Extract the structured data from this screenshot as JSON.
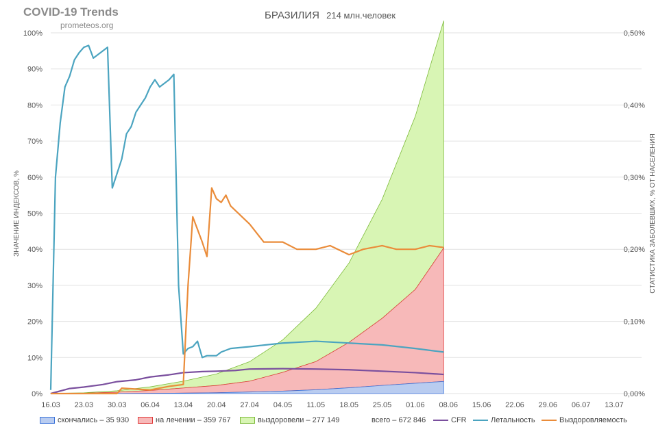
{
  "header": {
    "brand": "COVID-19 Trends",
    "site": "prometeos.org",
    "country": "БРАЗИЛИЯ",
    "population_value": "214",
    "population_unit": "млн.человек"
  },
  "legend": {
    "deaths": "скончались – 35 930",
    "active": "на лечении – 359 767",
    "recovered": "выздоровели – 277 149",
    "total": "всего – 672 846",
    "cfr": "CFR",
    "lethality": "Летальность",
    "recoverability": "Выздоровляемость"
  },
  "colors": {
    "deaths_fill": "#b9ccf0",
    "deaths_stroke": "#3b73d9",
    "active_fill": "#f7b9b9",
    "active_stroke": "#e03a3a",
    "recovered_fill": "#d8f5b4",
    "recovered_stroke": "#7dbb3a",
    "cfr": "#7a4f9e",
    "lethality": "#4ba4c0",
    "recoverability": "#ea8c3a",
    "grid": "#e2e2e2"
  },
  "chart_data": {
    "type": "area",
    "x_labels": [
      "16.03",
      "23.03",
      "30.03",
      "06.04",
      "13.04",
      "20.04",
      "27.04",
      "04.05",
      "11.05",
      "18.05",
      "25.05",
      "01.06",
      "08.06",
      "15.06",
      "22.06",
      "29.06",
      "06.07",
      "13.07"
    ],
    "ylabel_left": "ЗНАЧЕНИЕ ИНДЕКСОВ, %",
    "ylabel_right": "СТАТИСТИКА ЗАБОЛЕВШИХ, % ОТ НАСЕЛЕНИЯ",
    "y_left_ticks": [
      "0%",
      "10%",
      "20%",
      "30%",
      "40%",
      "50%",
      "60%",
      "70%",
      "80%",
      "90%",
      "100%"
    ],
    "y_right_ticks": [
      "0,00%",
      "0,10%",
      "0,20%",
      "0,30%",
      "0,40%",
      "0,50%"
    ],
    "ylim_left": [
      0,
      100
    ],
    "ylim_right": [
      0,
      0.5
    ],
    "x_start": "16.03",
    "x_end": "13.07",
    "series": [
      {
        "name": "скончались – 35 930",
        "axis": "right",
        "kind": "area",
        "x": [
          "16.03",
          "23.03",
          "30.03",
          "06.04",
          "13.04",
          "20.04",
          "27.04",
          "04.05",
          "11.05",
          "18.05",
          "25.05",
          "01.06",
          "07.06"
        ],
        "values": [
          0.0,
          0.0,
          0.0001,
          0.0003,
          0.0007,
          0.0012,
          0.0022,
          0.0034,
          0.0053,
          0.008,
          0.0113,
          0.0143,
          0.0168
        ]
      },
      {
        "name": "на лечении – 359 767",
        "axis": "right",
        "kind": "area",
        "x": [
          "16.03",
          "23.03",
          "30.03",
          "06.04",
          "13.04",
          "20.04",
          "27.04",
          "04.05",
          "11.05",
          "18.05",
          "25.05",
          "01.06",
          "07.06"
        ],
        "values": [
          0.0001,
          0.0005,
          0.0018,
          0.004,
          0.007,
          0.01,
          0.015,
          0.026,
          0.039,
          0.063,
          0.093,
          0.13,
          0.185
        ]
      },
      {
        "name": "выздоровели – 277 149",
        "axis": "right",
        "kind": "area",
        "x": [
          "16.03",
          "23.03",
          "30.03",
          "06.04",
          "13.04",
          "20.04",
          "27.04",
          "04.05",
          "11.05",
          "18.05",
          "25.05",
          "01.06",
          "07.06"
        ],
        "values": [
          0.0001,
          0.0006,
          0.002,
          0.005,
          0.0095,
          0.016,
          0.027,
          0.045,
          0.074,
          0.11,
          0.165,
          0.24,
          0.315
        ]
      },
      {
        "name": "CFR",
        "axis": "left",
        "kind": "line",
        "x": [
          "16.03",
          "20.03",
          "23.03",
          "27.03",
          "30.03",
          "03.04",
          "06.04",
          "10.04",
          "13.04",
          "17.04",
          "20.04",
          "24.04",
          "27.04",
          "04.05",
          "11.05",
          "18.05",
          "25.05",
          "01.06",
          "07.06"
        ],
        "values": [
          0.0,
          1.4,
          1.8,
          2.5,
          3.3,
          3.8,
          4.6,
          5.2,
          5.8,
          6.1,
          6.2,
          6.4,
          6.8,
          6.9,
          6.8,
          6.6,
          6.2,
          5.8,
          5.3
        ]
      },
      {
        "name": "Летальность",
        "axis": "left",
        "kind": "line",
        "x": [
          "16.03",
          "17.03",
          "18.03",
          "19.03",
          "20.03",
          "21.03",
          "22.03",
          "23.03",
          "24.03",
          "25.03",
          "26.03",
          "27.03",
          "28.03",
          "29.03",
          "30.03",
          "31.03",
          "01.04",
          "02.04",
          "03.04",
          "04.04",
          "05.04",
          "06.04",
          "07.04",
          "08.04",
          "09.04",
          "10.04",
          "11.04",
          "12.04",
          "13.04",
          "14.04",
          "15.04",
          "16.04",
          "17.04",
          "18.04",
          "19.04",
          "20.04",
          "21.04",
          "22.04",
          "23.04",
          "27.04",
          "04.05",
          "11.05",
          "18.05",
          "25.05",
          "01.06",
          "07.06"
        ],
        "values": [
          1.0,
          60.0,
          75.0,
          85.0,
          88.0,
          92.5,
          94.5,
          96.0,
          96.5,
          93.0,
          94.0,
          95.0,
          96.0,
          57.0,
          61.0,
          65.0,
          72.0,
          74.0,
          78.0,
          80.0,
          82.0,
          85.0,
          87.0,
          85.0,
          86.0,
          87.0,
          88.5,
          30.0,
          11.0,
          12.5,
          13.0,
          14.5,
          10.0,
          10.5,
          10.5,
          10.5,
          11.5,
          12.0,
          12.5,
          13.0,
          14.0,
          14.5,
          14.0,
          13.5,
          12.5,
          11.5
        ],
        "values_note": ""
      },
      {
        "name": "Выздоровляемость",
        "axis": "left",
        "kind": "line",
        "x": [
          "16.03",
          "23.03",
          "30.03",
          "31.03",
          "06.04",
          "10.04",
          "13.04",
          "14.04",
          "15.04",
          "17.04",
          "18.04",
          "19.04",
          "20.04",
          "21.04",
          "22.04",
          "23.04",
          "27.04",
          "30.04",
          "04.05",
          "07.05",
          "11.05",
          "14.05",
          "18.05",
          "21.05",
          "25.05",
          "28.05",
          "01.06",
          "04.06",
          "07.06"
        ],
        "values": [
          0.0,
          0.0,
          0.0,
          1.5,
          1.0,
          2.0,
          2.5,
          30.0,
          49.0,
          42.0,
          38.0,
          57.0,
          54.0,
          53.0,
          55.0,
          52.0,
          47.0,
          42.0,
          42.0,
          40.0,
          40.0,
          41.0,
          38.5,
          40.0,
          41.0,
          40.0,
          40.0,
          41.0,
          40.5
        ]
      }
    ]
  }
}
